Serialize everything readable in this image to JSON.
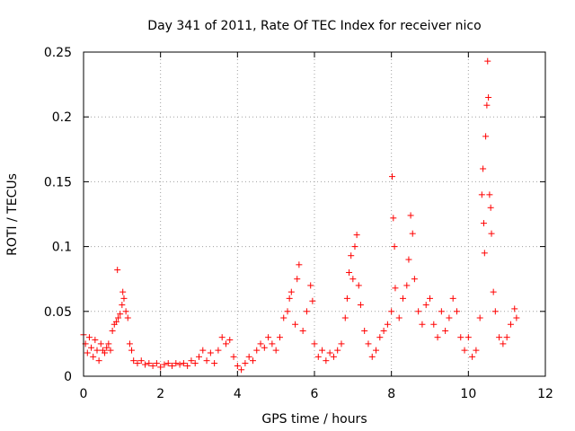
{
  "chart_data": {
    "type": "scatter",
    "title": "Day 341 of 2011, Rate Of TEC Index for receiver nico",
    "xlabel": "GPS time / hours",
    "ylabel": "ROTI / TECUs",
    "xlim": [
      0,
      12
    ],
    "ylim": [
      0,
      0.25
    ],
    "xticks": [
      "0",
      "2",
      "4",
      "6",
      "8",
      "10",
      "12"
    ],
    "yticks": [
      "0",
      "0.05",
      "0.1",
      "0.15",
      "0.2",
      "0.25"
    ],
    "grid": true,
    "marker": "+",
    "color": "#ff0000",
    "series": [
      {
        "name": "ROTI",
        "points": [
          [
            0.0,
            0.032
          ],
          [
            0.05,
            0.025
          ],
          [
            0.1,
            0.018
          ],
          [
            0.15,
            0.03
          ],
          [
            0.2,
            0.022
          ],
          [
            0.25,
            0.015
          ],
          [
            0.3,
            0.028
          ],
          [
            0.35,
            0.02
          ],
          [
            0.4,
            0.012
          ],
          [
            0.45,
            0.025
          ],
          [
            0.5,
            0.02
          ],
          [
            0.55,
            0.018
          ],
          [
            0.6,
            0.022
          ],
          [
            0.65,
            0.025
          ],
          [
            0.7,
            0.02
          ],
          [
            0.75,
            0.035
          ],
          [
            0.8,
            0.04
          ],
          [
            0.85,
            0.042
          ],
          [
            0.88,
            0.082
          ],
          [
            0.9,
            0.045
          ],
          [
            0.95,
            0.048
          ],
          [
            1.0,
            0.055
          ],
          [
            1.02,
            0.065
          ],
          [
            1.05,
            0.06
          ],
          [
            1.1,
            0.05
          ],
          [
            1.15,
            0.045
          ],
          [
            1.2,
            0.025
          ],
          [
            1.25,
            0.02
          ],
          [
            1.3,
            0.012
          ],
          [
            1.4,
            0.01
          ],
          [
            1.5,
            0.012
          ],
          [
            1.6,
            0.009
          ],
          [
            1.7,
            0.01
          ],
          [
            1.8,
            0.008
          ],
          [
            1.9,
            0.01
          ],
          [
            2.0,
            0.007
          ],
          [
            2.1,
            0.009
          ],
          [
            2.2,
            0.01
          ],
          [
            2.3,
            0.008
          ],
          [
            2.4,
            0.01
          ],
          [
            2.5,
            0.009
          ],
          [
            2.6,
            0.01
          ],
          [
            2.7,
            0.008
          ],
          [
            2.8,
            0.012
          ],
          [
            2.9,
            0.01
          ],
          [
            3.0,
            0.015
          ],
          [
            3.1,
            0.02
          ],
          [
            3.2,
            0.012
          ],
          [
            3.3,
            0.018
          ],
          [
            3.4,
            0.01
          ],
          [
            3.5,
            0.02
          ],
          [
            3.6,
            0.03
          ],
          [
            3.7,
            0.025
          ],
          [
            3.8,
            0.028
          ],
          [
            3.9,
            0.015
          ],
          [
            4.0,
            0.008
          ],
          [
            4.1,
            0.005
          ],
          [
            4.2,
            0.01
          ],
          [
            4.3,
            0.015
          ],
          [
            4.4,
            0.012
          ],
          [
            4.5,
            0.02
          ],
          [
            4.6,
            0.025
          ],
          [
            4.7,
            0.022
          ],
          [
            4.8,
            0.03
          ],
          [
            4.9,
            0.025
          ],
          [
            5.0,
            0.02
          ],
          [
            5.1,
            0.03
          ],
          [
            5.2,
            0.045
          ],
          [
            5.3,
            0.05
          ],
          [
            5.35,
            0.06
          ],
          [
            5.4,
            0.065
          ],
          [
            5.5,
            0.04
          ],
          [
            5.55,
            0.075
          ],
          [
            5.6,
            0.086
          ],
          [
            5.7,
            0.035
          ],
          [
            5.8,
            0.05
          ],
          [
            5.9,
            0.07
          ],
          [
            5.95,
            0.058
          ],
          [
            6.0,
            0.025
          ],
          [
            6.1,
            0.015
          ],
          [
            6.2,
            0.02
          ],
          [
            6.3,
            0.012
          ],
          [
            6.4,
            0.018
          ],
          [
            6.5,
            0.015
          ],
          [
            6.6,
            0.02
          ],
          [
            6.7,
            0.025
          ],
          [
            6.8,
            0.045
          ],
          [
            6.85,
            0.06
          ],
          [
            6.9,
            0.08
          ],
          [
            6.95,
            0.093
          ],
          [
            7.0,
            0.075
          ],
          [
            7.05,
            0.1
          ],
          [
            7.1,
            0.109
          ],
          [
            7.15,
            0.07
          ],
          [
            7.2,
            0.055
          ],
          [
            7.3,
            0.035
          ],
          [
            7.4,
            0.025
          ],
          [
            7.5,
            0.015
          ],
          [
            7.6,
            0.02
          ],
          [
            7.7,
            0.03
          ],
          [
            7.8,
            0.035
          ],
          [
            7.9,
            0.04
          ],
          [
            8.0,
            0.05
          ],
          [
            8.02,
            0.154
          ],
          [
            8.05,
            0.122
          ],
          [
            8.08,
            0.1
          ],
          [
            8.1,
            0.068
          ],
          [
            8.2,
            0.045
          ],
          [
            8.3,
            0.06
          ],
          [
            8.4,
            0.07
          ],
          [
            8.45,
            0.09
          ],
          [
            8.5,
            0.124
          ],
          [
            8.55,
            0.11
          ],
          [
            8.6,
            0.075
          ],
          [
            8.7,
            0.05
          ],
          [
            8.8,
            0.04
          ],
          [
            8.9,
            0.055
          ],
          [
            9.0,
            0.06
          ],
          [
            9.1,
            0.04
          ],
          [
            9.2,
            0.03
          ],
          [
            9.3,
            0.05
          ],
          [
            9.4,
            0.035
          ],
          [
            9.5,
            0.045
          ],
          [
            9.6,
            0.06
          ],
          [
            9.7,
            0.05
          ],
          [
            9.8,
            0.03
          ],
          [
            9.9,
            0.02
          ],
          [
            10.0,
            0.03
          ],
          [
            10.1,
            0.015
          ],
          [
            10.2,
            0.02
          ],
          [
            10.3,
            0.045
          ],
          [
            10.35,
            0.14
          ],
          [
            10.38,
            0.16
          ],
          [
            10.4,
            0.118
          ],
          [
            10.42,
            0.095
          ],
          [
            10.45,
            0.185
          ],
          [
            10.48,
            0.209
          ],
          [
            10.5,
            0.243
          ],
          [
            10.52,
            0.215
          ],
          [
            10.55,
            0.14
          ],
          [
            10.58,
            0.13
          ],
          [
            10.6,
            0.11
          ],
          [
            10.65,
            0.065
          ],
          [
            10.7,
            0.05
          ],
          [
            10.8,
            0.03
          ],
          [
            10.9,
            0.025
          ],
          [
            11.0,
            0.03
          ],
          [
            11.1,
            0.04
          ],
          [
            11.2,
            0.052
          ],
          [
            11.25,
            0.045
          ]
        ]
      }
    ]
  }
}
